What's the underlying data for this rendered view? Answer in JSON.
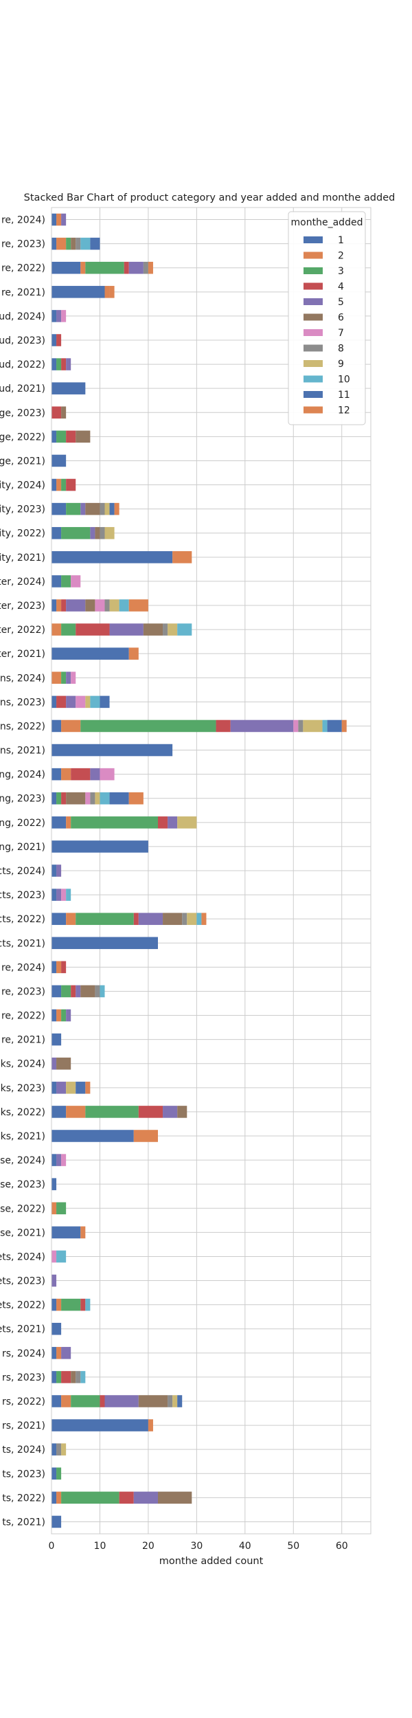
{
  "chart_data": {
    "type": "bar",
    "orientation": "horizontal",
    "stacked": true,
    "title": "Stacked Bar Chart of  product category and year added and monthe added",
    "xlabel": "monthe added count",
    "ylabel": "",
    "xlim": [
      0,
      66
    ],
    "xticks": [
      0,
      10,
      20,
      30,
      40,
      50,
      60
    ],
    "grid": true,
    "legend": {
      "title": "monthe_added",
      "placement": "top-right"
    },
    "categories": [
      "re, 2024)",
      "re, 2023)",
      "re, 2022)",
      "re, 2021)",
      "ud, 2024)",
      "ud, 2023)",
      "ud, 2022)",
      "ud, 2021)",
      "ge, 2023)",
      "ge, 2022)",
      "ge, 2021)",
      "ity, 2024)",
      "ity, 2023)",
      "ity, 2022)",
      "ity, 2021)",
      "ter, 2024)",
      "ter, 2023)",
      "ter, 2022)",
      "ter, 2021)",
      "ns, 2024)",
      "ns, 2023)",
      "ns, 2022)",
      "ns, 2021)",
      "ng, 2024)",
      "ng, 2023)",
      "ng, 2022)",
      "ng, 2021)",
      "cts, 2024)",
      "cts, 2023)",
      "cts, 2022)",
      "cts, 2021)",
      "re, 2024)",
      "re, 2023)",
      "re, 2022)",
      "re, 2021)",
      "ks, 2024)",
      "ks, 2023)",
      "ks, 2022)",
      "ks, 2021)",
      "se, 2024)",
      "se, 2023)",
      "se, 2022)",
      "se, 2021)",
      "ets, 2024)",
      "ets, 2023)",
      "ets, 2022)",
      "ets, 2021)",
      "rs, 2024)",
      "rs, 2023)",
      "rs, 2022)",
      "rs, 2021)",
      "ts, 2024)",
      "ts, 2023)",
      "ts, 2022)",
      "ts, 2021)"
    ],
    "series": [
      {
        "name": "1",
        "color": "#4c72b0",
        "values": [
          1,
          1,
          6,
          11,
          1,
          1,
          1,
          7,
          0,
          1,
          3,
          1,
          3,
          2,
          25,
          2,
          1,
          0,
          16,
          0,
          1,
          2,
          25,
          2,
          1,
          3,
          20,
          1,
          1,
          3,
          22,
          1,
          2,
          1,
          2,
          0,
          1,
          3,
          17,
          1,
          1,
          0,
          6,
          0,
          0,
          1,
          2,
          1,
          1,
          2,
          20,
          1,
          1,
          1,
          2
        ]
      },
      {
        "name": "2",
        "color": "#dd8452",
        "values": [
          1,
          2,
          1,
          1,
          0,
          0,
          0,
          0,
          0,
          0,
          0,
          1,
          0,
          0,
          4,
          0,
          1,
          2,
          2,
          2,
          0,
          4,
          0,
          2,
          0,
          1,
          0,
          0,
          0,
          2,
          0,
          1,
          0,
          1,
          0,
          0,
          0,
          4,
          5,
          0,
          0,
          1,
          1,
          0,
          0,
          1,
          0,
          1,
          0,
          2,
          1,
          0,
          0,
          1,
          0
        ]
      },
      {
        "name": "3",
        "color": "#55a868",
        "values": [
          0,
          1,
          8,
          0,
          0,
          0,
          1,
          0,
          0,
          2,
          0,
          1,
          3,
          6,
          0,
          2,
          0,
          3,
          0,
          1,
          0,
          28,
          0,
          0,
          1,
          18,
          0,
          0,
          0,
          12,
          0,
          0,
          2,
          1,
          0,
          0,
          0,
          11,
          0,
          0,
          0,
          2,
          0,
          0,
          0,
          4,
          0,
          0,
          1,
          6,
          0,
          0,
          1,
          12,
          0
        ]
      },
      {
        "name": "4",
        "color": "#c44e52",
        "values": [
          0,
          0,
          1,
          0,
          0,
          1,
          1,
          0,
          2,
          2,
          0,
          2,
          0,
          0,
          0,
          0,
          1,
          7,
          0,
          0,
          2,
          3,
          0,
          4,
          1,
          2,
          0,
          0,
          0,
          1,
          0,
          1,
          1,
          0,
          0,
          0,
          0,
          5,
          0,
          0,
          0,
          0,
          0,
          0,
          0,
          1,
          0,
          0,
          2,
          1,
          0,
          0,
          0,
          3,
          0
        ]
      },
      {
        "name": "5",
        "color": "#8172b3",
        "values": [
          1,
          0,
          3,
          0,
          1,
          0,
          1,
          0,
          0,
          0,
          0,
          0,
          1,
          1,
          0,
          0,
          4,
          7,
          0,
          1,
          2,
          13,
          0,
          2,
          0,
          2,
          0,
          1,
          1,
          5,
          0,
          0,
          1,
          1,
          0,
          1,
          2,
          3,
          0,
          1,
          0,
          0,
          0,
          0,
          1,
          0,
          0,
          2,
          0,
          7,
          0,
          0,
          0,
          5,
          0
        ]
      },
      {
        "name": "6",
        "color": "#937860",
        "values": [
          0,
          1,
          0,
          0,
          0,
          0,
          0,
          0,
          1,
          3,
          0,
          0,
          3,
          1,
          0,
          0,
          2,
          4,
          0,
          0,
          0,
          0,
          0,
          0,
          4,
          0,
          0,
          0,
          0,
          4,
          0,
          0,
          3,
          0,
          0,
          3,
          0,
          2,
          0,
          0,
          0,
          0,
          0,
          0,
          0,
          0,
          0,
          0,
          1,
          6,
          0,
          0,
          0,
          7,
          0
        ]
      },
      {
        "name": "7",
        "color": "#da8bc3",
        "values": [
          0,
          0,
          0,
          0,
          1,
          0,
          0,
          0,
          0,
          0,
          0,
          0,
          0,
          0,
          0,
          2,
          2,
          0,
          0,
          1,
          2,
          1,
          0,
          3,
          1,
          0,
          0,
          0,
          1,
          0,
          0,
          0,
          0,
          0,
          0,
          0,
          0,
          0,
          0,
          1,
          0,
          0,
          0,
          1,
          0,
          0,
          0,
          0,
          0,
          0,
          0,
          0,
          0,
          0,
          0
        ]
      },
      {
        "name": "8",
        "color": "#8c8c8c",
        "values": [
          0,
          1,
          1,
          0,
          0,
          0,
          0,
          0,
          0,
          0,
          0,
          0,
          1,
          1,
          0,
          0,
          1,
          1,
          0,
          0,
          0,
          1,
          0,
          0,
          1,
          0,
          0,
          0,
          0,
          1,
          0,
          0,
          1,
          0,
          0,
          0,
          0,
          0,
          0,
          0,
          0,
          0,
          0,
          0,
          0,
          0,
          0,
          0,
          1,
          1,
          0,
          1,
          0,
          0,
          0
        ]
      },
      {
        "name": "9",
        "color": "#ccb974",
        "values": [
          0,
          0,
          0,
          0,
          0,
          0,
          0,
          0,
          0,
          0,
          0,
          0,
          1,
          2,
          0,
          0,
          2,
          2,
          0,
          0,
          1,
          4,
          0,
          0,
          1,
          4,
          0,
          0,
          0,
          2,
          0,
          0,
          0,
          0,
          0,
          0,
          2,
          0,
          0,
          0,
          0,
          0,
          0,
          0,
          0,
          0,
          0,
          0,
          0,
          1,
          0,
          1,
          0,
          0,
          0
        ]
      },
      {
        "name": "10",
        "color": "#64b5cd",
        "values": [
          0,
          2,
          0,
          0,
          0,
          0,
          0,
          0,
          0,
          0,
          0,
          0,
          0,
          0,
          0,
          0,
          2,
          3,
          0,
          0,
          2,
          1,
          0,
          0,
          2,
          0,
          0,
          0,
          1,
          1,
          0,
          0,
          1,
          0,
          0,
          0,
          0,
          0,
          0,
          0,
          0,
          0,
          0,
          2,
          0,
          1,
          0,
          0,
          1,
          0,
          0,
          0,
          0,
          0,
          0
        ]
      },
      {
        "name": "11",
        "color": "#4c72b0",
        "values": [
          0,
          2,
          0,
          0,
          0,
          0,
          0,
          0,
          0,
          0,
          0,
          0,
          1,
          0,
          0,
          0,
          0,
          0,
          0,
          0,
          2,
          3,
          0,
          0,
          4,
          0,
          0,
          0,
          0,
          0,
          0,
          0,
          0,
          0,
          0,
          0,
          2,
          0,
          0,
          0,
          0,
          0,
          0,
          0,
          0,
          0,
          0,
          0,
          0,
          1,
          0,
          0,
          0,
          0,
          0
        ]
      },
      {
        "name": "12",
        "color": "#dd8452",
        "values": [
          0,
          0,
          1,
          1,
          0,
          0,
          0,
          0,
          0,
          0,
          0,
          0,
          1,
          0,
          0,
          0,
          4,
          0,
          0,
          0,
          0,
          1,
          0,
          0,
          3,
          0,
          0,
          0,
          0,
          1,
          0,
          0,
          0,
          0,
          0,
          0,
          1,
          0,
          0,
          0,
          0,
          0,
          0,
          0,
          0,
          0,
          0,
          0,
          0,
          0,
          0,
          0,
          0,
          0,
          0
        ]
      }
    ]
  }
}
